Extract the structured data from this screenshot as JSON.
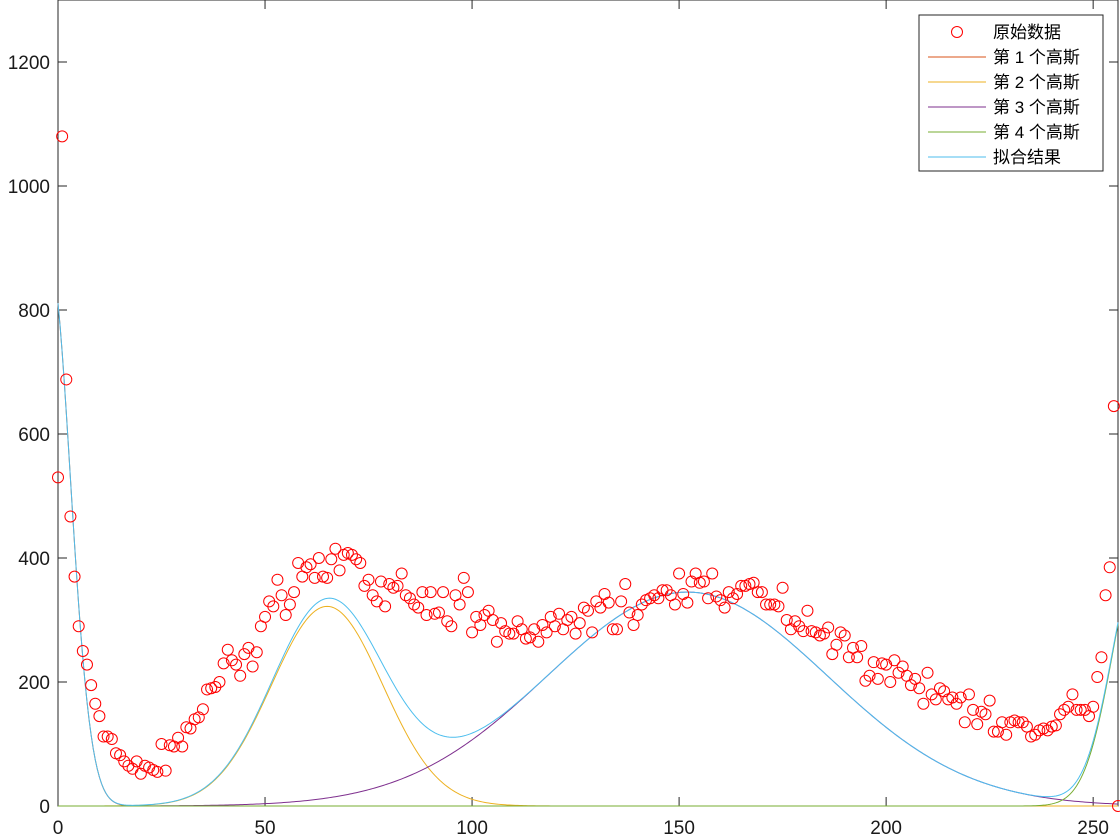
{
  "chart_data": {
    "type": "scatter",
    "title": "",
    "xlabel": "",
    "ylabel": "",
    "xlim": [
      0,
      256
    ],
    "ylim": [
      0,
      1300
    ],
    "xticks": [
      0,
      50,
      100,
      150,
      200,
      250
    ],
    "yticks": [
      0,
      200,
      400,
      600,
      800,
      1000,
      1200
    ],
    "grid": false,
    "legend_position": "top-right",
    "legend": [
      "原始数据",
      "第 1 个高斯",
      "第 2 个高斯",
      "第 3 个高斯",
      "第 4 个高斯",
      "拟合结果"
    ],
    "colors": {
      "data": "#ff0000",
      "g1": "#d95319",
      "g2": "#edb120",
      "g3": "#7e2f8e",
      "g4": "#77ac30",
      "fit": "#4dbeee"
    },
    "series": [
      {
        "name": "原始数据",
        "type": "scatter",
        "points": [
          [
            0,
            530
          ],
          [
            1,
            1080
          ],
          [
            2,
            688
          ],
          [
            3,
            467
          ],
          [
            4,
            370
          ],
          [
            5,
            290
          ],
          [
            6,
            250
          ],
          [
            7,
            228
          ],
          [
            8,
            195
          ],
          [
            9,
            165
          ],
          [
            10,
            145
          ],
          [
            11,
            112
          ],
          [
            12,
            112
          ],
          [
            13,
            108
          ],
          [
            14,
            85
          ],
          [
            15,
            82
          ],
          [
            16,
            72
          ],
          [
            17,
            65
          ],
          [
            18,
            60
          ],
          [
            19,
            72
          ],
          [
            20,
            52
          ],
          [
            21,
            65
          ],
          [
            22,
            62
          ],
          [
            23,
            58
          ],
          [
            24,
            55
          ],
          [
            25,
            100
          ],
          [
            26,
            57
          ],
          [
            27,
            98
          ],
          [
            28,
            96
          ],
          [
            29,
            110
          ],
          [
            30,
            96
          ],
          [
            31,
            127
          ],
          [
            32,
            125
          ],
          [
            33,
            140
          ],
          [
            34,
            143
          ],
          [
            35,
            156
          ],
          [
            36,
            188
          ],
          [
            37,
            190
          ],
          [
            38,
            192
          ],
          [
            39,
            200
          ],
          [
            40,
            230
          ],
          [
            41,
            252
          ],
          [
            42,
            235
          ],
          [
            43,
            228
          ],
          [
            44,
            210
          ],
          [
            45,
            245
          ],
          [
            46,
            255
          ],
          [
            47,
            225
          ],
          [
            48,
            248
          ],
          [
            49,
            290
          ],
          [
            50,
            305
          ],
          [
            51,
            330
          ],
          [
            52,
            322
          ],
          [
            53,
            365
          ],
          [
            54,
            340
          ],
          [
            55,
            308
          ],
          [
            56,
            325
          ],
          [
            57,
            345
          ],
          [
            58,
            392
          ],
          [
            59,
            370
          ],
          [
            60,
            385
          ],
          [
            61,
            390
          ],
          [
            62,
            368
          ],
          [
            63,
            400
          ],
          [
            64,
            370
          ],
          [
            65,
            368
          ],
          [
            66,
            398
          ],
          [
            67,
            415
          ],
          [
            68,
            380
          ],
          [
            69,
            405
          ],
          [
            70,
            408
          ],
          [
            71,
            405
          ],
          [
            72,
            398
          ],
          [
            73,
            392
          ],
          [
            74,
            355
          ],
          [
            75,
            365
          ],
          [
            76,
            340
          ],
          [
            77,
            330
          ],
          [
            78,
            362
          ],
          [
            79,
            322
          ],
          [
            80,
            358
          ],
          [
            81,
            352
          ],
          [
            82,
            355
          ],
          [
            83,
            375
          ],
          [
            84,
            340
          ],
          [
            85,
            335
          ],
          [
            86,
            325
          ],
          [
            87,
            320
          ],
          [
            88,
            345
          ],
          [
            89,
            308
          ],
          [
            90,
            345
          ],
          [
            91,
            310
          ],
          [
            92,
            312
          ],
          [
            93,
            345
          ],
          [
            94,
            298
          ],
          [
            95,
            290
          ],
          [
            96,
            340
          ],
          [
            97,
            325
          ],
          [
            98,
            368
          ],
          [
            99,
            345
          ],
          [
            100,
            280
          ],
          [
            101,
            305
          ],
          [
            102,
            292
          ],
          [
            103,
            308
          ],
          [
            104,
            315
          ],
          [
            105,
            300
          ],
          [
            106,
            265
          ],
          [
            107,
            295
          ],
          [
            108,
            282
          ],
          [
            109,
            278
          ],
          [
            110,
            278
          ],
          [
            111,
            298
          ],
          [
            112,
            285
          ],
          [
            113,
            270
          ],
          [
            114,
            272
          ],
          [
            115,
            285
          ],
          [
            116,
            265
          ],
          [
            117,
            292
          ],
          [
            118,
            280
          ],
          [
            119,
            305
          ],
          [
            120,
            290
          ],
          [
            121,
            310
          ],
          [
            122,
            285
          ],
          [
            123,
            300
          ],
          [
            124,
            305
          ],
          [
            125,
            278
          ],
          [
            126,
            295
          ],
          [
            127,
            320
          ],
          [
            128,
            315
          ],
          [
            129,
            280
          ],
          [
            130,
            330
          ],
          [
            131,
            320
          ],
          [
            132,
            342
          ],
          [
            133,
            328
          ],
          [
            134,
            285
          ],
          [
            135,
            285
          ],
          [
            136,
            330
          ],
          [
            137,
            358
          ],
          [
            138,
            312
          ],
          [
            139,
            292
          ],
          [
            140,
            308
          ],
          [
            141,
            325
          ],
          [
            142,
            332
          ],
          [
            143,
            335
          ],
          [
            144,
            340
          ],
          [
            145,
            335
          ],
          [
            146,
            348
          ],
          [
            147,
            348
          ],
          [
            148,
            340
          ],
          [
            149,
            325
          ],
          [
            150,
            375
          ],
          [
            151,
            342
          ],
          [
            152,
            328
          ],
          [
            153,
            362
          ],
          [
            154,
            375
          ],
          [
            155,
            360
          ],
          [
            156,
            362
          ],
          [
            157,
            335
          ],
          [
            158,
            375
          ],
          [
            159,
            338
          ],
          [
            160,
            332
          ],
          [
            161,
            320
          ],
          [
            162,
            345
          ],
          [
            163,
            335
          ],
          [
            164,
            342
          ],
          [
            165,
            355
          ],
          [
            166,
            355
          ],
          [
            167,
            358
          ],
          [
            168,
            360
          ],
          [
            169,
            345
          ],
          [
            170,
            345
          ],
          [
            171,
            325
          ],
          [
            172,
            325
          ],
          [
            173,
            325
          ],
          [
            174,
            322
          ],
          [
            175,
            352
          ],
          [
            176,
            300
          ],
          [
            177,
            285
          ],
          [
            178,
            298
          ],
          [
            179,
            290
          ],
          [
            180,
            282
          ],
          [
            181,
            315
          ],
          [
            182,
            282
          ],
          [
            183,
            280
          ],
          [
            184,
            275
          ],
          [
            185,
            278
          ],
          [
            186,
            288
          ],
          [
            187,
            245
          ],
          [
            188,
            260
          ],
          [
            189,
            280
          ],
          [
            190,
            275
          ],
          [
            191,
            240
          ],
          [
            192,
            255
          ],
          [
            193,
            240
          ],
          [
            194,
            258
          ],
          [
            195,
            202
          ],
          [
            196,
            210
          ],
          [
            197,
            232
          ],
          [
            198,
            205
          ],
          [
            199,
            230
          ],
          [
            200,
            228
          ],
          [
            201,
            200
          ],
          [
            202,
            235
          ],
          [
            203,
            215
          ],
          [
            204,
            225
          ],
          [
            205,
            210
          ],
          [
            206,
            195
          ],
          [
            207,
            205
          ],
          [
            208,
            190
          ],
          [
            209,
            165
          ],
          [
            210,
            215
          ],
          [
            211,
            180
          ],
          [
            212,
            172
          ],
          [
            213,
            190
          ],
          [
            214,
            185
          ],
          [
            215,
            172
          ],
          [
            216,
            175
          ],
          [
            217,
            165
          ],
          [
            218,
            175
          ],
          [
            219,
            135
          ],
          [
            220,
            180
          ],
          [
            221,
            155
          ],
          [
            222,
            132
          ],
          [
            223,
            152
          ],
          [
            224,
            148
          ],
          [
            225,
            170
          ],
          [
            226,
            120
          ],
          [
            227,
            120
          ],
          [
            228,
            135
          ],
          [
            229,
            115
          ],
          [
            230,
            135
          ],
          [
            231,
            138
          ],
          [
            232,
            135
          ],
          [
            233,
            135
          ],
          [
            234,
            128
          ],
          [
            235,
            112
          ],
          [
            236,
            115
          ],
          [
            237,
            122
          ],
          [
            238,
            125
          ],
          [
            239,
            122
          ],
          [
            240,
            128
          ],
          [
            241,
            130
          ],
          [
            242,
            148
          ],
          [
            243,
            155
          ],
          [
            244,
            160
          ],
          [
            245,
            180
          ],
          [
            246,
            155
          ],
          [
            247,
            155
          ],
          [
            248,
            155
          ],
          [
            249,
            145
          ],
          [
            250,
            160
          ],
          [
            251,
            208
          ],
          [
            252,
            240
          ],
          [
            253,
            340
          ],
          [
            254,
            385
          ],
          [
            255,
            645
          ],
          [
            256,
            0
          ]
        ]
      },
      {
        "name": "第 1 个高斯",
        "type": "line",
        "function": {
          "kind": "gaussian",
          "a": 880,
          "mu": -2,
          "sigma": 7
        },
        "x_range": [
          0,
          256
        ]
      },
      {
        "name": "第 2 个高斯",
        "type": "line",
        "function": {
          "kind": "gaussian",
          "a": 322,
          "mu": 65,
          "sigma": 19
        },
        "x_range": [
          0,
          256
        ]
      },
      {
        "name": "第 3 个高斯",
        "type": "line",
        "function": {
          "kind": "gaussian",
          "a": 345,
          "mu": 152,
          "sigma": 48
        },
        "x_range": [
          0,
          256
        ]
      },
      {
        "name": "第 4 个高斯",
        "type": "line",
        "function": {
          "kind": "gaussian",
          "a": 420,
          "mu": 262,
          "sigma": 10
        },
        "x_range": [
          0,
          256
        ]
      },
      {
        "name": "拟合结果",
        "type": "line",
        "function": {
          "kind": "sum_of_gaussians"
        },
        "x_range": [
          0,
          256
        ]
      }
    ]
  }
}
